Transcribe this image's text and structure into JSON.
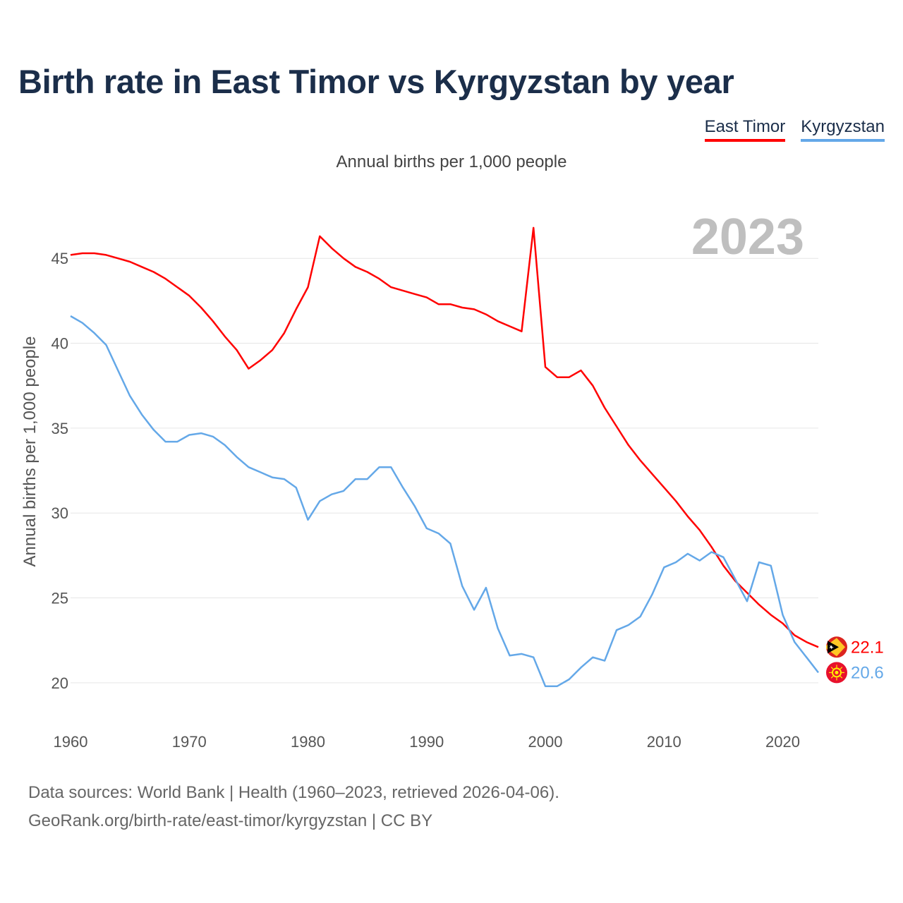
{
  "chart_data": {
    "type": "line",
    "title": "Birth rate in East Timor vs Kyrgyzstan by year",
    "subtitle": "Annual births per 1,000 people",
    "ylabel": "Annual births per 1,000 people",
    "xlabel": "",
    "year_label": "2023",
    "xlim": [
      1960,
      2023
    ],
    "ylim": [
      17.5,
      48.5
    ],
    "x_ticks": [
      1960,
      1970,
      1980,
      1990,
      2000,
      2010,
      2020
    ],
    "y_ticks": [
      20,
      25,
      30,
      35,
      40,
      45
    ],
    "grid": true,
    "legend_position": "top-right",
    "x": [
      1960,
      1961,
      1962,
      1963,
      1964,
      1965,
      1966,
      1967,
      1968,
      1969,
      1970,
      1971,
      1972,
      1973,
      1974,
      1975,
      1976,
      1977,
      1978,
      1979,
      1980,
      1981,
      1982,
      1983,
      1984,
      1985,
      1986,
      1987,
      1988,
      1989,
      1990,
      1991,
      1992,
      1993,
      1994,
      1995,
      1996,
      1997,
      1998,
      1999,
      2000,
      2001,
      2002,
      2003,
      2004,
      2005,
      2006,
      2007,
      2008,
      2009,
      2010,
      2011,
      2012,
      2013,
      2014,
      2015,
      2016,
      2017,
      2018,
      2019,
      2020,
      2021,
      2022,
      2023
    ],
    "series": [
      {
        "name": "East Timor",
        "color": "#ff0000",
        "end_label": "22.1",
        "values": [
          45.2,
          45.3,
          45.3,
          45.2,
          45.0,
          44.8,
          44.5,
          44.2,
          43.8,
          43.3,
          42.8,
          42.1,
          41.3,
          40.4,
          39.6,
          38.5,
          39.0,
          39.6,
          40.6,
          42.0,
          43.3,
          46.3,
          45.6,
          45.0,
          44.5,
          44.2,
          43.8,
          43.3,
          43.1,
          42.9,
          42.7,
          42.3,
          42.3,
          42.1,
          42.0,
          41.7,
          41.3,
          41.0,
          40.7,
          46.8,
          38.6,
          38.0,
          38.0,
          38.4,
          37.5,
          36.2,
          35.1,
          34.0,
          33.1,
          32.3,
          31.5,
          30.7,
          29.8,
          29.0,
          28.0,
          26.9,
          26.0,
          25.3,
          24.6,
          24.0,
          23.5,
          22.8,
          22.4,
          22.1
        ]
      },
      {
        "name": "Kyrgyzstan",
        "color": "#64a8e8",
        "end_label": "20.6",
        "values": [
          41.6,
          41.2,
          40.6,
          39.9,
          38.4,
          36.9,
          35.8,
          34.9,
          34.2,
          34.2,
          34.6,
          34.7,
          34.5,
          34.0,
          33.3,
          32.7,
          32.4,
          32.1,
          32.0,
          31.5,
          29.6,
          30.7,
          31.1,
          31.3,
          32.0,
          32.0,
          32.7,
          32.7,
          31.5,
          30.4,
          29.1,
          28.8,
          28.2,
          25.7,
          24.3,
          25.6,
          23.2,
          21.6,
          21.7,
          21.5,
          19.8,
          19.8,
          20.2,
          20.9,
          21.5,
          21.3,
          23.1,
          23.4,
          23.9,
          25.2,
          26.8,
          27.1,
          27.6,
          27.2,
          27.7,
          27.4,
          26.1,
          24.8,
          27.1,
          26.9,
          24.0,
          22.4,
          21.5,
          20.6
        ]
      }
    ]
  },
  "footer": {
    "line1": "Data sources: World Bank | Health (1960–2023, retrieved 2026-04-06).",
    "line2": "GeoRank.org/birth-rate/east-timor/kyrgyzstan | CC BY"
  }
}
